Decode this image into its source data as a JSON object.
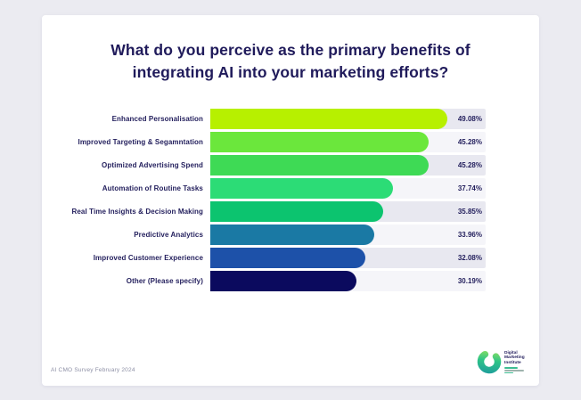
{
  "title": {
    "full": "What do you perceive as the primary benefits of integrating AI into your marketing efforts?",
    "lines": [
      "What do you perceive as the primary benefits of",
      "integrating AI into your marketing efforts?"
    ]
  },
  "chart_data": {
    "type": "bar",
    "orientation": "horizontal",
    "title": "What do you perceive as the primary benefits of integrating AI into your marketing efforts?",
    "categories": [
      "Enhanced Personalisation",
      "Improved Targeting & Segamntation",
      "Optimized Advertising Spend",
      "Automation of Routine Tasks",
      "Real Time Insights & Decision Making",
      "Predictive Analytics",
      "Improved Customer Experience",
      "Other (Please specify)"
    ],
    "values": [
      49.08,
      45.28,
      45.28,
      37.74,
      35.85,
      33.96,
      32.08,
      30.19
    ],
    "value_labels": [
      "49.08%",
      "45.28%",
      "45.28%",
      "37.74%",
      "35.85%",
      "33.96%",
      "32.08%",
      "30.19%"
    ],
    "bar_colors": [
      "#b7f000",
      "#6be73c",
      "#3eda55",
      "#2cdc76",
      "#0cc46f",
      "#1a79a4",
      "#1d51a9",
      "#0b0a5e"
    ],
    "track_colors_alternating": [
      "#e8e8f0",
      "#f5f5f9"
    ],
    "xlim": [
      0,
      56.9
    ],
    "grid": false,
    "legend": false,
    "xlabel": "",
    "ylabel": ""
  },
  "footer": {
    "source_note": "AI CMO Survey February 2024"
  },
  "logo": {
    "name": "Digital Marketing Institute",
    "wordmark_lines": [
      "Digital",
      "Marketing",
      "Institute"
    ],
    "ring_gradient": [
      "#1f9e9b",
      "#8fe05f"
    ]
  },
  "colors": {
    "page_background": "#ebebf1",
    "card_background": "#ffffff",
    "title_text": "#201b5b",
    "label_text": "#221e5c",
    "footer_text": "#8e90a6"
  }
}
